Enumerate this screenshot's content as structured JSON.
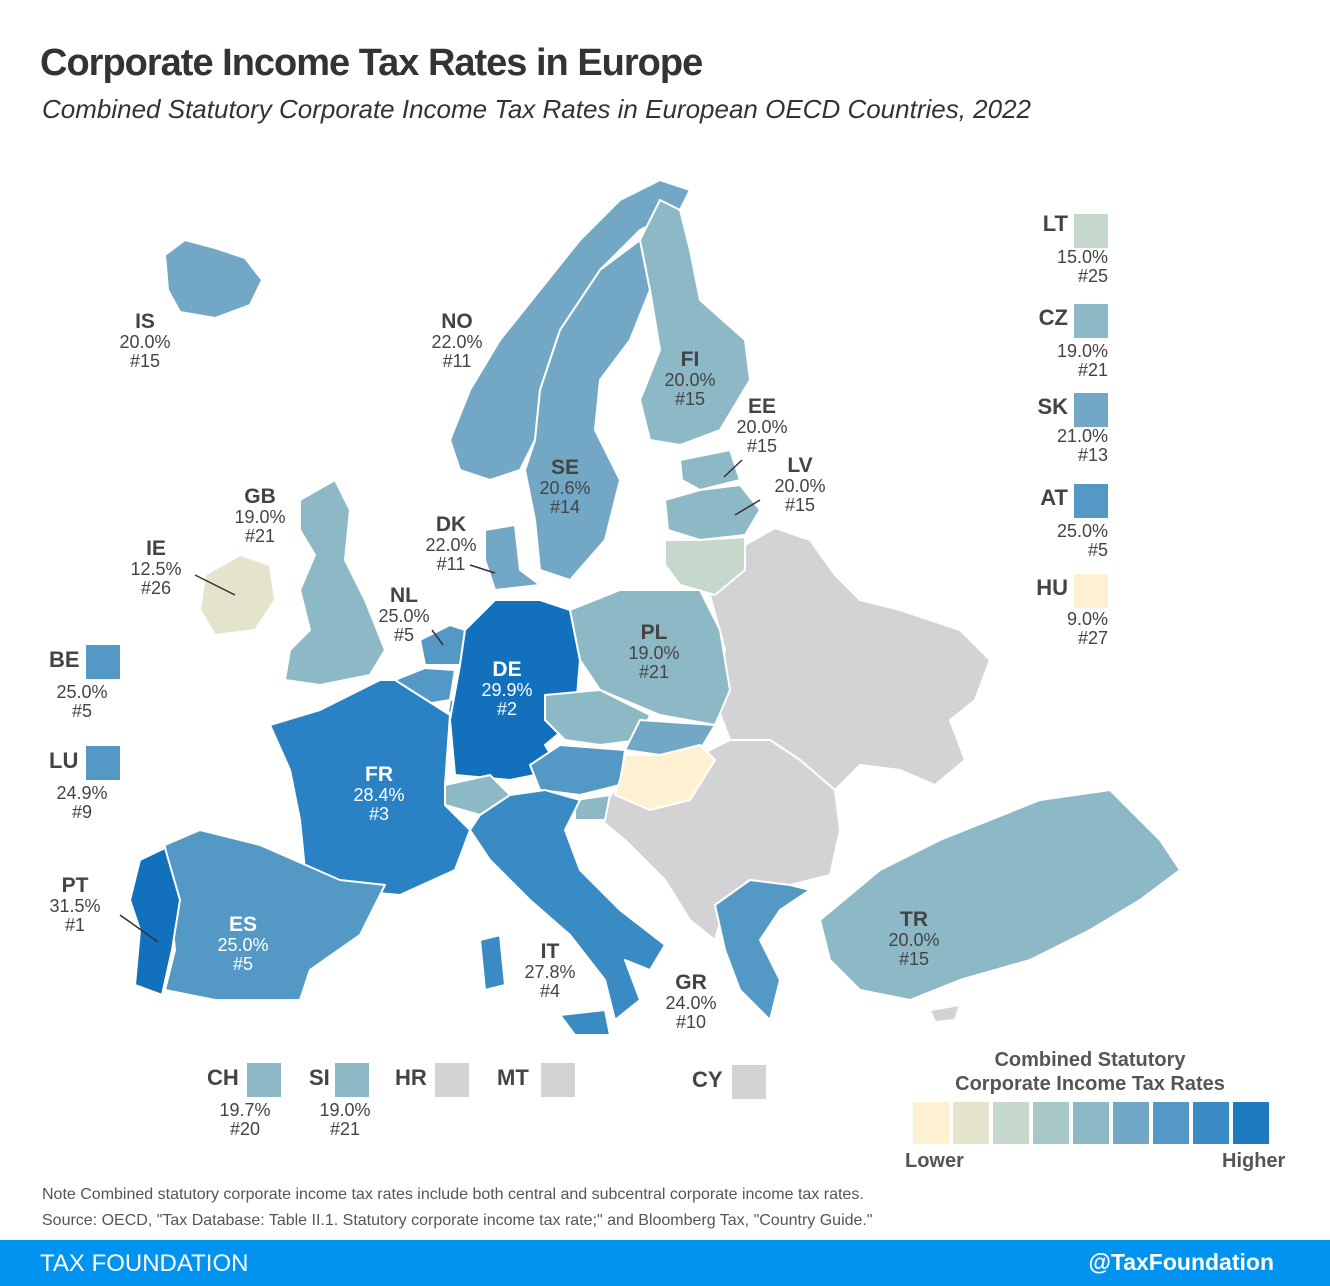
{
  "title": "Corporate Income Tax Rates in Europe",
  "subtitle": "Combined Statutory Corporate Income Tax Rates in European OECD Countries, 2022",
  "colors": {
    "scale": [
      "#fdf1d2",
      "#e4e3cc",
      "#c6d7cc",
      "#a8c7c8",
      "#8db8c6",
      "#72a8c5",
      "#5499c6",
      "#3a8bc4",
      "#1f7bc0"
    ],
    "non_oecd": "#d3d3d6",
    "footer": "#0094f0"
  },
  "countries": {
    "IS": {
      "code": "IS",
      "rate": "20.0%",
      "rank": "#15"
    },
    "NO": {
      "code": "NO",
      "rate": "22.0%",
      "rank": "#11"
    },
    "FI": {
      "code": "FI",
      "rate": "20.0%",
      "rank": "#15"
    },
    "EE": {
      "code": "EE",
      "rate": "20.0%",
      "rank": "#15"
    },
    "LV": {
      "code": "LV",
      "rate": "20.0%",
      "rank": "#15"
    },
    "SE": {
      "code": "SE",
      "rate": "20.6%",
      "rank": "#14"
    },
    "GB": {
      "code": "GB",
      "rate": "19.0%",
      "rank": "#21"
    },
    "DK": {
      "code": "DK",
      "rate": "22.0%",
      "rank": "#11"
    },
    "IE": {
      "code": "IE",
      "rate": "12.5%",
      "rank": "#26"
    },
    "NL": {
      "code": "NL",
      "rate": "25.0%",
      "rank": "#5"
    },
    "PL": {
      "code": "PL",
      "rate": "19.0%",
      "rank": "#21"
    },
    "DE": {
      "code": "DE",
      "rate": "29.9%",
      "rank": "#2"
    },
    "FR": {
      "code": "FR",
      "rate": "28.4%",
      "rank": "#3"
    },
    "PT": {
      "code": "PT",
      "rate": "31.5%",
      "rank": "#1"
    },
    "ES": {
      "code": "ES",
      "rate": "25.0%",
      "rank": "#5"
    },
    "IT": {
      "code": "IT",
      "rate": "27.8%",
      "rank": "#4"
    },
    "GR": {
      "code": "GR",
      "rate": "24.0%",
      "rank": "#10"
    },
    "TR": {
      "code": "TR",
      "rate": "20.0%",
      "rank": "#15"
    },
    "LT": {
      "code": "LT",
      "rate": "15.0%",
      "rank": "#25"
    },
    "CZ": {
      "code": "CZ",
      "rate": "19.0%",
      "rank": "#21"
    },
    "SK": {
      "code": "SK",
      "rate": "21.0%",
      "rank": "#13"
    },
    "AT": {
      "code": "AT",
      "rate": "25.0%",
      "rank": "#5"
    },
    "HU": {
      "code": "HU",
      "rate": "9.0%",
      "rank": "#27"
    },
    "BE": {
      "code": "BE",
      "rate": "25.0%",
      "rank": "#5"
    },
    "LU": {
      "code": "LU",
      "rate": "24.9%",
      "rank": "#9"
    },
    "CH": {
      "code": "CH",
      "rate": "19.7%",
      "rank": "#20"
    },
    "SI": {
      "code": "SI",
      "rate": "19.0%",
      "rank": "#21"
    },
    "HR": {
      "code": "HR"
    },
    "MT": {
      "code": "MT"
    },
    "CY": {
      "code": "CY"
    }
  },
  "legend": {
    "title_line1": "Combined Statutory",
    "title_line2": "Corporate Income Tax Rates",
    "lower": "Lower",
    "higher": "Higher"
  },
  "note": "Note Combined statutory corporate income tax rates include both central and subcentral corporate income tax rates.",
  "source": "Source: OECD, \"Tax Database: Table II.1. Statutory corporate income tax rate;\" and Bloomberg Tax, \"Country Guide.\"",
  "footer": {
    "brand": "TAX FOUNDATION",
    "handle": "@TaxFoundation"
  }
}
